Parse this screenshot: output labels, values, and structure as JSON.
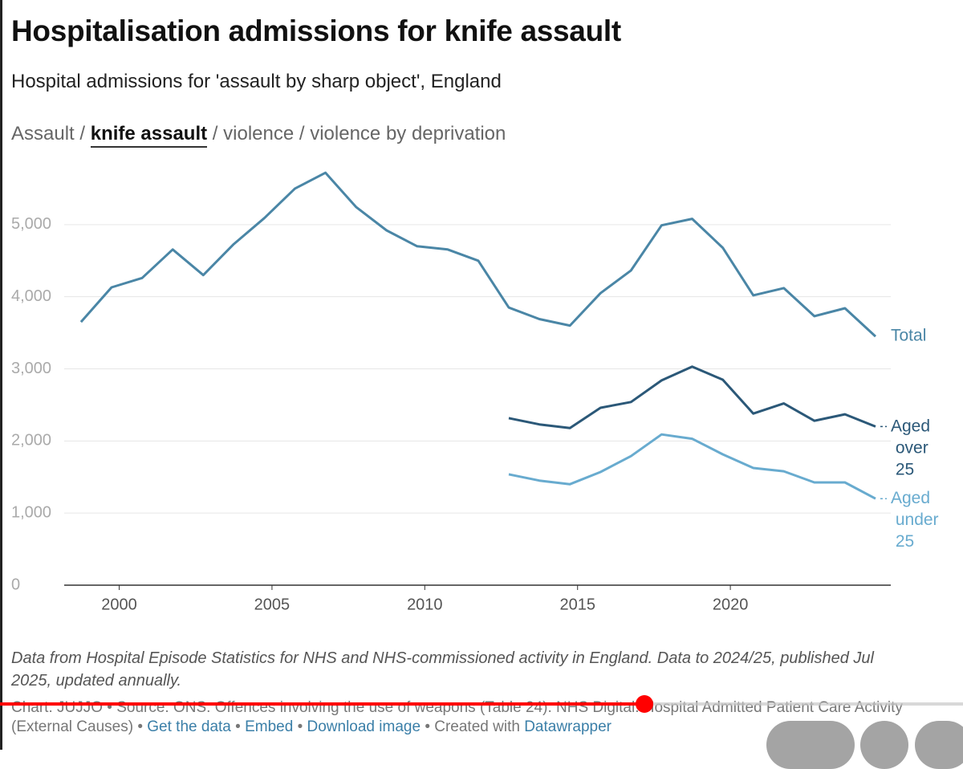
{
  "chart_data": {
    "type": "line",
    "title": "Hospitalisation admissions for knife assault",
    "subtitle": "Hospital admissions for 'assault by sharp object', England",
    "nav": {
      "separator": "/",
      "items": [
        {
          "label": "Assault"
        },
        {
          "label": "knife assault",
          "active": true
        },
        {
          "label": "violence"
        },
        {
          "label": "violence by deprivation"
        }
      ]
    },
    "x": [
      1998.75,
      1999.75,
      2000.75,
      2001.75,
      2002.75,
      2003.75,
      2004.75,
      2005.75,
      2006.75,
      2007.75,
      2008.75,
      2009.75,
      2010.75,
      2011.75,
      2012.75,
      2013.75,
      2014.75,
      2015.75,
      2016.75,
      2017.75,
      2018.75,
      2019.75,
      2020.75,
      2021.75,
      2022.75,
      2023.75,
      2024.75
    ],
    "series": [
      {
        "name": "Total",
        "color": "#4a86a6",
        "values": [
          3650,
          4130,
          4260,
          4655,
          4300,
          4730,
          5090,
          5500,
          5720,
          5245,
          4920,
          4700,
          4655,
          4500,
          3850,
          3690,
          3600,
          4050,
          4365,
          4990,
          5080,
          4680,
          4020,
          4120,
          3730,
          3840,
          3450
        ]
      },
      {
        "name": "Aged over 25",
        "color": "#2b5878",
        "values": [
          null,
          null,
          null,
          null,
          null,
          null,
          null,
          null,
          null,
          null,
          null,
          null,
          null,
          null,
          2316,
          2230,
          2180,
          2460,
          2540,
          2840,
          3030,
          2850,
          2380,
          2520,
          2280,
          2370,
          2200
        ]
      },
      {
        "name": "Aged under 25",
        "color": "#68abcf",
        "values": [
          null,
          null,
          null,
          null,
          null,
          null,
          null,
          null,
          null,
          null,
          null,
          null,
          null,
          null,
          1537,
          1450,
          1400,
          1570,
          1790,
          2090,
          2030,
          1815,
          1625,
          1580,
          1425,
          1425,
          1200
        ]
      }
    ],
    "xlim": [
      1998.2,
      2025.25
    ],
    "xticks": [
      2000,
      2005,
      2010,
      2015,
      2020
    ],
    "ylim": [
      0,
      6000
    ],
    "yticks": [
      0,
      {
        "value": 1000,
        "label": "1,000"
      },
      {
        "value": 2000,
        "label": "2,000"
      },
      {
        "value": 3000,
        "label": "3,000"
      },
      {
        "value": 4000,
        "label": "4,000"
      },
      {
        "value": 5000,
        "label": "5,000"
      }
    ],
    "grid": true,
    "notes": "Data from Hospital Episode Statistics for NHS and NHS-commissioned activity in England. Data to 2024/25, published Jul 2025, updated annually.",
    "source": "Chart: JUJJO • Source: ONS: Offences involving the use of weapons (Table 24). NHS Digital: Hospital Admitted Patient Care Activity (External Causes)",
    "bullet": "•",
    "links": [
      {
        "label": "Get the data"
      },
      {
        "label": "Embed"
      },
      {
        "label": "Download image"
      }
    ],
    "credit": "Created with",
    "credit_link": "Datawrapper"
  }
}
